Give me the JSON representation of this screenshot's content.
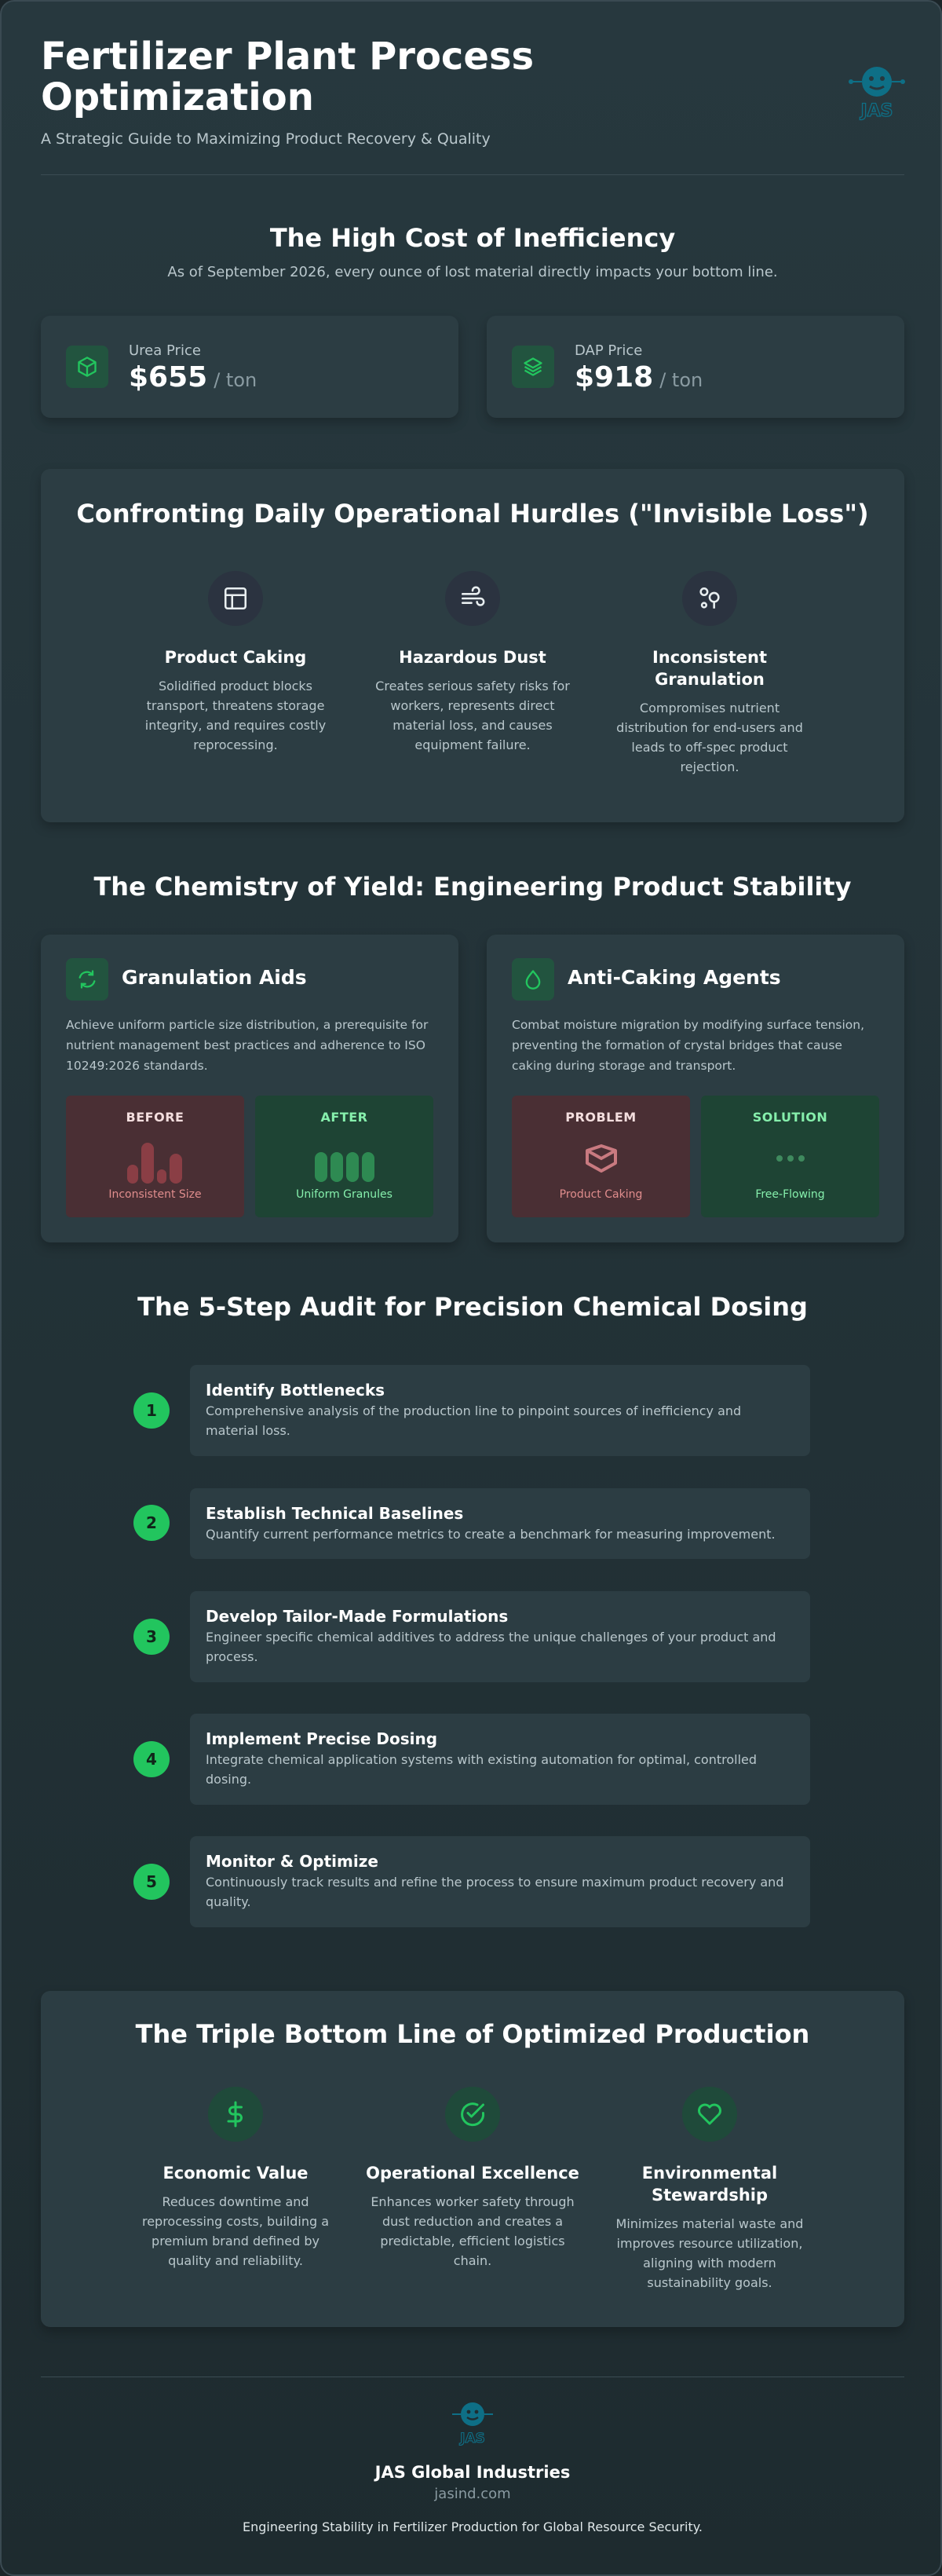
{
  "header": {
    "title": "Fertilizer Plant Process Optimization",
    "subtitle": "A Strategic Guide to Maximizing Product Recovery & Quality",
    "logo_text": "JAS"
  },
  "cost": {
    "title": "The High Cost of Inefficiency",
    "subtitle": "As of September 2026, every ounce of lost material directly impacts your bottom line.",
    "prices": [
      {
        "label": "Urea Price",
        "value": "$655",
        "unit": "/ ton",
        "icon": "cube-icon"
      },
      {
        "label": "DAP Price",
        "value": "$918",
        "unit": "/ ton",
        "icon": "layers-icon"
      }
    ]
  },
  "hurdles": {
    "title": "Confronting Daily Operational Hurdles (\"Invisible Loss\")",
    "items": [
      {
        "title": "Product Caking",
        "text": "Solidified product blocks transport, threatens storage integrity, and requires costly reprocessing.",
        "icon": "layout-icon"
      },
      {
        "title": "Hazardous Dust",
        "text": "Creates serious safety risks for workers, represents direct material loss, and causes equipment failure.",
        "icon": "wind-icon"
      },
      {
        "title": "Inconsistent Granulation",
        "text": "Compromises nutrient distribution for end-users and leads to off-spec product rejection.",
        "icon": "scatter-icon"
      }
    ]
  },
  "chemistry": {
    "title": "The Chemistry of Yield: Engineering Product Stability",
    "cards": [
      {
        "title": "Granulation Aids",
        "text": "Achieve uniform particle size distribution, a prerequisite for nutrient management best practices and adherence to ISO 10249:2026 standards.",
        "icon": "refresh-icon",
        "before_label": "BEFORE",
        "before_caption": "Inconsistent Size",
        "after_label": "AFTER",
        "after_caption": "Uniform Granules"
      },
      {
        "title": "Anti-Caking Agents",
        "text": "Combat moisture migration by modifying surface tension, preventing the formation of crystal bridges that cause caking during storage and transport.",
        "icon": "droplet-icon",
        "before_label": "PROBLEM",
        "before_caption": "Product Caking",
        "after_label": "SOLUTION",
        "after_caption": "Free-Flowing"
      }
    ]
  },
  "audit": {
    "title": "The 5-Step Audit for Precision Chemical Dosing",
    "steps": [
      {
        "num": "1",
        "title": "Identify Bottlenecks",
        "text": "Comprehensive analysis of the production line to pinpoint sources of inefficiency and material loss."
      },
      {
        "num": "2",
        "title": "Establish Technical Baselines",
        "text": "Quantify current performance metrics to create a benchmark for measuring improvement."
      },
      {
        "num": "3",
        "title": "Develop Tailor-Made Formulations",
        "text": "Engineer specific chemical additives to address the unique challenges of your product and process."
      },
      {
        "num": "4",
        "title": "Implement Precise Dosing",
        "text": "Integrate chemical application systems with existing automation for optimal, controlled dosing."
      },
      {
        "num": "5",
        "title": "Monitor & Optimize",
        "text": "Continuously track results and refine the process to ensure maximum product recovery and quality."
      }
    ]
  },
  "bottom_line": {
    "title": "The Triple Bottom Line of Optimized Production",
    "items": [
      {
        "title": "Economic Value",
        "text": "Reduces downtime and reprocessing costs, building a premium brand defined by quality and reliability.",
        "icon": "dollar-icon"
      },
      {
        "title": "Operational Excellence",
        "text": "Enhances worker safety through dust reduction and creates a predictable, efficient logistics chain.",
        "icon": "check-circle-icon"
      },
      {
        "title": "Environmental Stewardship",
        "text": "Minimizes material waste and improves resource utilization, aligning with modern sustainability goals.",
        "icon": "heart-icon"
      }
    ]
  },
  "footer": {
    "company": "JAS Global Industries",
    "url": "jasind.com",
    "tagline": "Engineering Stability in Fertilizer Production for Global Resource Security."
  },
  "colors": {
    "accent": "#22c55e",
    "background": "#27383e",
    "card": "#2c3d43",
    "logo": "#0e6f86"
  }
}
